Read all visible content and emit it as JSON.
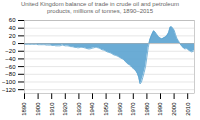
{
  "chart_data": {
    "type": "area",
    "title": "United Kingdom balance of trade in crude oil and petroleum\nproducts, millions of tonnes, 1890–2015",
    "color": "#5ba3d0",
    "x": [
      1890,
      1891,
      1892,
      1893,
      1894,
      1895,
      1896,
      1897,
      1898,
      1899,
      1900,
      1901,
      1902,
      1903,
      1904,
      1905,
      1906,
      1907,
      1908,
      1909,
      1910,
      1911,
      1912,
      1913,
      1914,
      1915,
      1916,
      1917,
      1918,
      1919,
      1920,
      1921,
      1922,
      1923,
      1924,
      1925,
      1926,
      1927,
      1928,
      1929,
      1930,
      1931,
      1932,
      1933,
      1934,
      1935,
      1936,
      1937,
      1938,
      1939,
      1940,
      1941,
      1942,
      1943,
      1944,
      1945,
      1946,
      1947,
      1948,
      1949,
      1950,
      1951,
      1952,
      1953,
      1954,
      1955,
      1956,
      1957,
      1958,
      1959,
      1960,
      1961,
      1962,
      1963,
      1964,
      1965,
      1966,
      1967,
      1968,
      1969,
      1970,
      1971,
      1972,
      1973,
      1974,
      1975,
      1976,
      1977,
      1978,
      1979,
      1980,
      1981,
      1982,
      1983,
      1984,
      1985,
      1986,
      1987,
      1988,
      1989,
      1990,
      1991,
      1992,
      1993,
      1994,
      1995,
      1996,
      1997,
      1998,
      1999,
      2000,
      2001,
      2002,
      2003,
      2004,
      2005,
      2006,
      2007,
      2008,
      2009,
      2010,
      2011,
      2012,
      2013,
      2014,
      2015
    ],
    "values": [
      -2,
      -2,
      -2,
      -2,
      -2,
      -2,
      -2,
      -2,
      -2,
      -2,
      -3,
      -3,
      -3,
      -3,
      -3,
      -3,
      -4,
      -4,
      -4,
      -4,
      -5,
      -5,
      -5,
      -6,
      -6,
      -6,
      -6,
      -5,
      -4,
      -5,
      -6,
      -6,
      -6,
      -7,
      -8,
      -8,
      -9,
      -10,
      -10,
      -11,
      -11,
      -10,
      -10,
      -10,
      -11,
      -12,
      -13,
      -14,
      -14,
      -13,
      -12,
      -11,
      -10,
      -10,
      -11,
      -12,
      -14,
      -16,
      -17,
      -18,
      -20,
      -22,
      -23,
      -24,
      -26,
      -28,
      -30,
      -31,
      -32,
      -34,
      -36,
      -38,
      -40,
      -42,
      -46,
      -50,
      -53,
      -55,
      -58,
      -62,
      -65,
      -68,
      -72,
      -78,
      -88,
      -105,
      -100,
      -88,
      -75,
      -60,
      -35,
      -10,
      8,
      18,
      26,
      33,
      30,
      25,
      20,
      16,
      14,
      12,
      14,
      16,
      18,
      22,
      28,
      42,
      44,
      40,
      35,
      24,
      14,
      8,
      2,
      -4,
      -8,
      -12,
      -14,
      -13,
      -15,
      -18,
      -20,
      -22,
      -20,
      -18
    ],
    "xlim": [
      1890,
      2015
    ],
    "xticks": [
      1890,
      1900,
      1910,
      1920,
      1930,
      1940,
      1950,
      1960,
      1970,
      1980,
      1990,
      2000,
      2010
    ],
    "ylim": [
      -130,
      60
    ],
    "yticks": [
      60,
      40,
      20,
      0,
      -20,
      -40,
      -60,
      -80,
      -100,
      -120
    ],
    "grid": true
  }
}
